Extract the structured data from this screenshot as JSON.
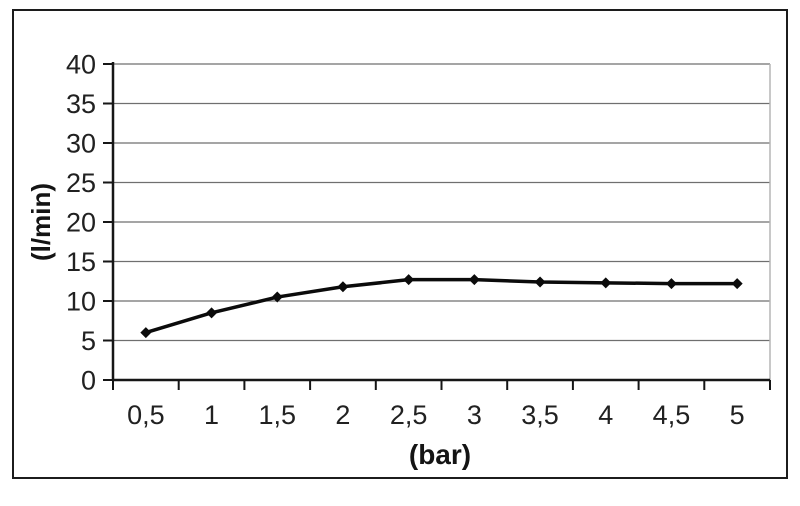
{
  "chart": {
    "colors": {
      "background": "#ffffff",
      "chart_border": "#1c1c1c",
      "gridline": "#6f6f6f",
      "plot_right_border": "#b5b5b5",
      "axis": "#161616",
      "series_line": "#0b0b0b",
      "marker": "#0b0b0b",
      "tick_text": "#212121"
    }
  },
  "chart_data": {
    "type": "line",
    "xlabel": "(bar)",
    "ylabel": "(l/min)",
    "x": [
      0.5,
      1,
      1.5,
      2,
      2.5,
      3,
      3.5,
      4,
      4.5,
      5
    ],
    "x_tick_labels": [
      "0,5",
      "1",
      "1,5",
      "2",
      "2,5",
      "3",
      "3,5",
      "4",
      "4,5",
      "5"
    ],
    "values": [
      6,
      8.5,
      10.5,
      11.8,
      12.7,
      12.7,
      12.4,
      12.3,
      12.2,
      12.2
    ],
    "ylim": [
      0,
      40
    ],
    "ytick_step": 5,
    "y_tick_labels": [
      "0",
      "5",
      "10",
      "15",
      "20",
      "25",
      "30",
      "35",
      "40"
    ],
    "grid": "horizontal",
    "legend": false,
    "marker": "diamond"
  }
}
